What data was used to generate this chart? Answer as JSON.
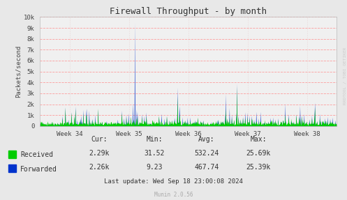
{
  "title": "Firewall Throughput - by month",
  "ylabel": "Packets/second",
  "background_color": "#e8e8e8",
  "plot_bg_color": "#f0f0f0",
  "grid_color_h": "#ff8888",
  "grid_color_v": "#ddaaaa",
  "ylim": [
    0,
    10000
  ],
  "yticks": [
    0,
    1000,
    2000,
    3000,
    4000,
    5000,
    6000,
    7000,
    8000,
    9000,
    10000
  ],
  "ytick_labels": [
    "0",
    "1k",
    "2k",
    "3k",
    "4k",
    "5k",
    "6k",
    "7k",
    "8k",
    "9k",
    "10k"
  ],
  "week_labels": [
    "Week 34",
    "Week 35",
    "Week 36",
    "Week 37",
    "Week 38"
  ],
  "received_color": "#00cc00",
  "forwarded_color": "#0033cc",
  "watermark": "RRDTOOL / TOBI OETIKER",
  "munin_label": "Munin 2.0.56",
  "legend_labels": [
    "Received",
    "Forwarded"
  ],
  "legend_colors": [
    "#00cc00",
    "#0033cc"
  ],
  "stats_header": [
    "Cur:",
    "Min:",
    "Avg:",
    "Max:"
  ],
  "stats_received": [
    "2.29k",
    "31.52",
    "532.24",
    "25.69k"
  ],
  "stats_forwarded": [
    "2.26k",
    "9.23",
    "467.74",
    "25.39k"
  ],
  "last_update": "Last update: Wed Sep 18 23:00:08 2024",
  "num_points": 800,
  "seed": 42
}
